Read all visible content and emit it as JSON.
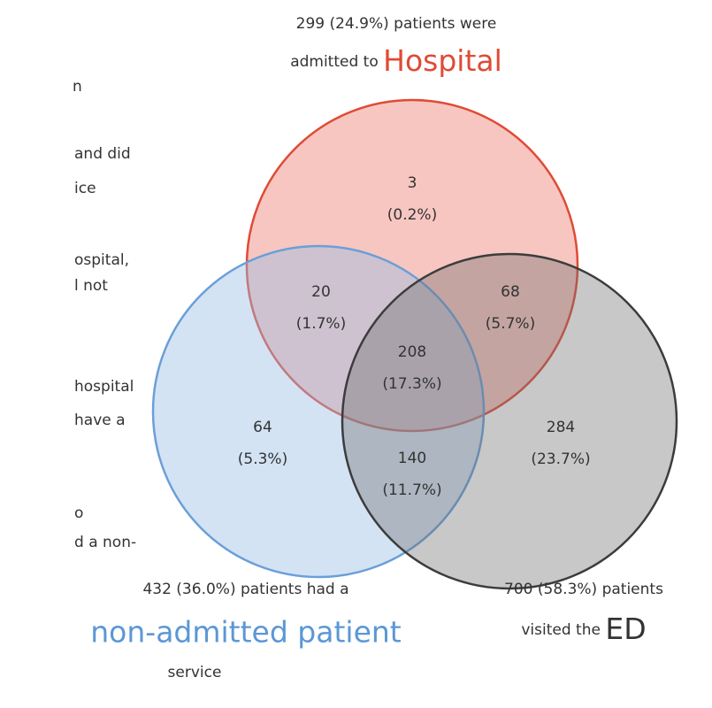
{
  "top_label": {
    "line1": "299 (24.9%) patients were",
    "prefix": "admitted to ",
    "name": "Hospital"
  },
  "left_label": {
    "line1": "432 (36.0%) patients had a",
    "name": "non-admitted patient",
    "line3": "service"
  },
  "right_label": {
    "line1": "700 (58.3%) patients",
    "prefix": "visited the ",
    "name": "ED"
  },
  "regions": [
    {
      "count": "3",
      "percent": "(0.2%)"
    },
    {
      "count": "20",
      "percent": "(1.7%)"
    },
    {
      "count": "68",
      "percent": "(5.7%)"
    },
    {
      "count": "208",
      "percent": "(17.3%)"
    },
    {
      "count": "64",
      "percent": "(5.3%)"
    },
    {
      "count": "140",
      "percent": "(11.7%)"
    },
    {
      "count": "284",
      "percent": "(23.7%)"
    }
  ],
  "side_text": [
    "n",
    "and did",
    "ice",
    "ospital,",
    "l not",
    "hospital",
    "have a",
    "o",
    "d a non-"
  ]
}
